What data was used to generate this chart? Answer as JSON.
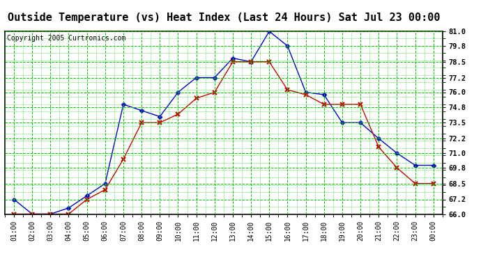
{
  "title": "Outside Temperature (vs) Heat Index (Last 24 Hours) Sat Jul 23 00:00",
  "copyright": "Copyright 2005 Curtronics.com",
  "x_labels": [
    "01:00",
    "02:00",
    "03:00",
    "04:00",
    "05:00",
    "06:00",
    "07:00",
    "08:00",
    "09:00",
    "10:00",
    "11:00",
    "12:00",
    "13:00",
    "14:00",
    "15:00",
    "16:00",
    "17:00",
    "18:00",
    "19:00",
    "20:00",
    "21:00",
    "22:00",
    "23:00",
    "00:00"
  ],
  "blue_data": [
    67.2,
    66.0,
    66.0,
    66.5,
    67.5,
    68.5,
    75.0,
    74.5,
    74.0,
    76.0,
    77.2,
    77.2,
    78.8,
    78.5,
    81.0,
    79.8,
    76.0,
    75.8,
    73.5,
    73.5,
    72.2,
    71.0,
    70.0,
    70.0
  ],
  "red_data": [
    66.0,
    66.0,
    66.0,
    66.0,
    67.2,
    68.0,
    70.5,
    73.5,
    73.5,
    74.2,
    75.5,
    76.0,
    78.5,
    78.5,
    78.5,
    76.2,
    75.8,
    75.0,
    75.0,
    75.0,
    71.5,
    69.8,
    68.5,
    68.5
  ],
  "ylim": [
    66.0,
    81.0
  ],
  "yticks": [
    66.0,
    67.2,
    68.5,
    69.8,
    71.0,
    72.2,
    73.5,
    74.8,
    76.0,
    77.2,
    78.5,
    79.8,
    81.0
  ],
  "blue_color": "#0000cc",
  "red_color": "#cc0000",
  "bg_color": "#ffffff",
  "plot_bg": "#ffffff",
  "grid_color": "#00cc00",
  "title_fontsize": 11,
  "copyright_fontsize": 7
}
